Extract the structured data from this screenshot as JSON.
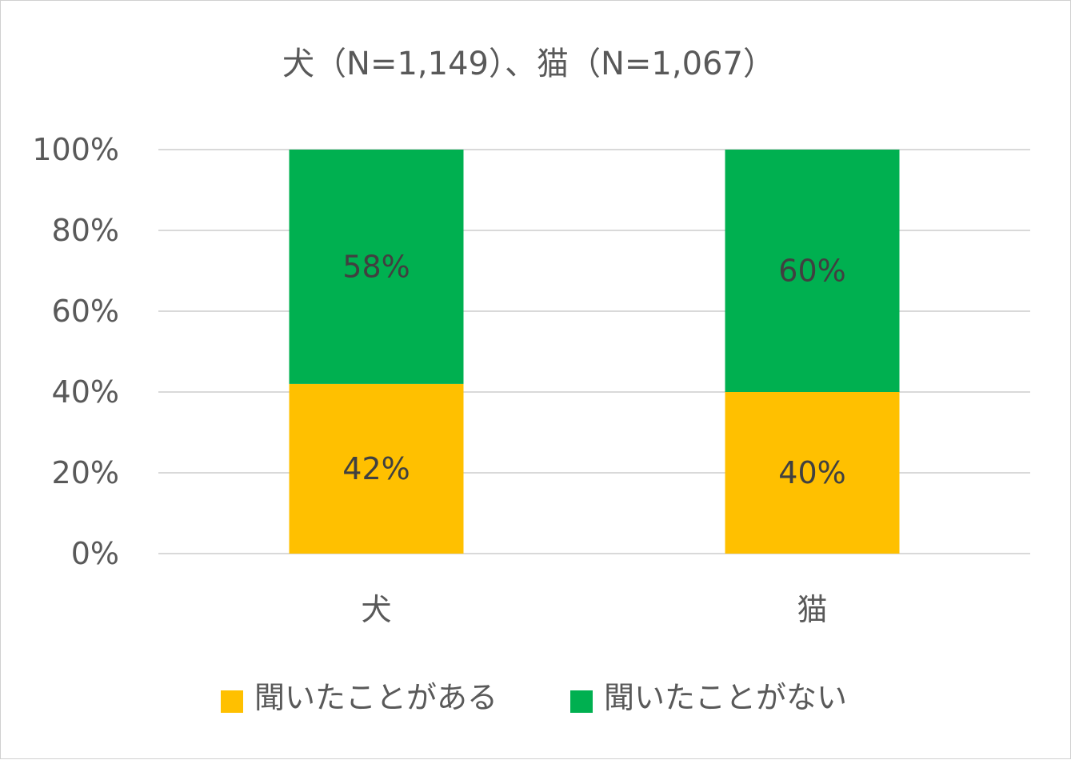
{
  "chart_data": {
    "type": "bar",
    "stacked": true,
    "title": "犬（N=1,149）、猫（N=1,067）",
    "categories": [
      "犬",
      "猫"
    ],
    "series": [
      {
        "name": "聞いたことがある",
        "values": [
          42,
          40
        ],
        "labels": [
          "42%",
          "40%"
        ],
        "color": "#FFC000"
      },
      {
        "name": "聞いたことがない",
        "values": [
          58,
          60
        ],
        "labels": [
          "58%",
          "60%"
        ],
        "color": "#00B050"
      }
    ],
    "yticks": [
      "0%",
      "20%",
      "40%",
      "60%",
      "80%",
      "100%"
    ],
    "ylim": [
      0,
      100
    ],
    "grid": true,
    "legend_position": "bottom",
    "xlabel": "",
    "ylabel": ""
  }
}
